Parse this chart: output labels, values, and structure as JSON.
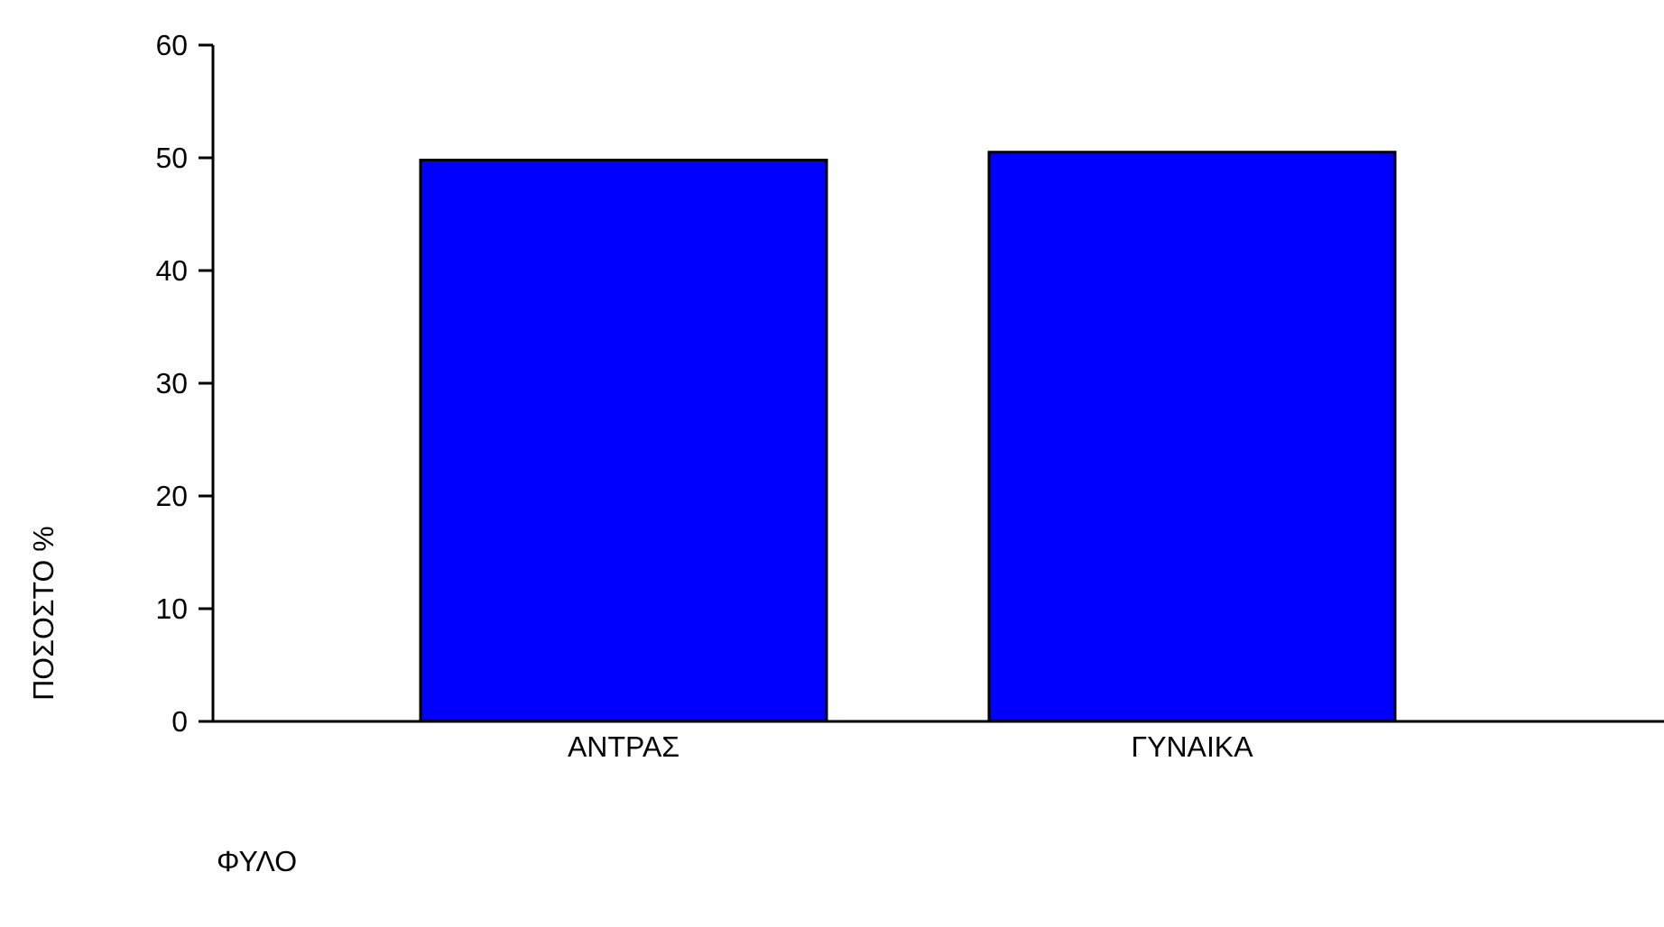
{
  "chart_data": {
    "type": "bar",
    "ylabel": "ΠΟΣΟΣΤΟ %",
    "xlabel": "ΦΥΛΟ",
    "categories": [
      "ΑΝΤΡΑΣ",
      "ΓΥΝΑΙΚΑ"
    ],
    "values": [
      49.8,
      50.5
    ],
    "color": "#0000ff",
    "ylim": [
      0,
      60
    ],
    "yticks": [
      0,
      10,
      20,
      30,
      40,
      50,
      60
    ]
  }
}
